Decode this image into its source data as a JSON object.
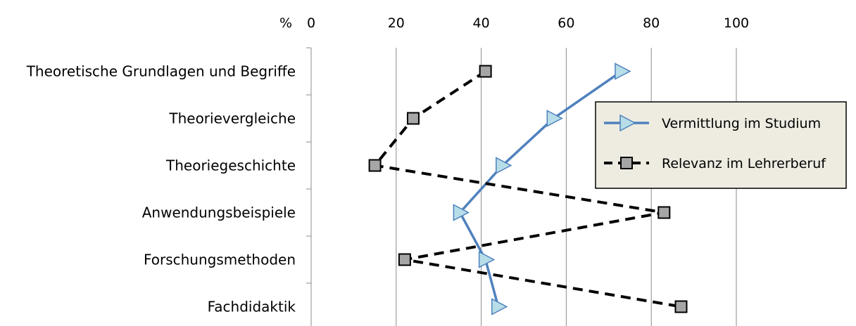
{
  "chart_data": {
    "type": "line",
    "orientation": "horizontal",
    "axis_unit_label": "%",
    "xlim": [
      0,
      100
    ],
    "x_ticks": [
      "0",
      "20",
      "40",
      "60",
      "80",
      "100"
    ],
    "categories": [
      "Theoretische Grundlagen und Begriffe",
      "Theorievergleiche",
      "Theoriegeschichte",
      "Anwendungsbeispiele",
      "Forschungsmethoden",
      "Fachdidaktik"
    ],
    "series": [
      {
        "name": "Vermittlung im Studium",
        "marker": "triangle-right",
        "line": "solid",
        "color": "#4f81bd",
        "marker_fill": "#b7dde8",
        "values": [
          73,
          57,
          45,
          35,
          41,
          44
        ]
      },
      {
        "name": "Relevanz im Lehrerberuf",
        "marker": "square",
        "line": "dashed",
        "color": "#000000",
        "marker_fill": "#a6a6a6",
        "values": [
          41,
          24,
          15,
          83,
          22,
          87
        ]
      }
    ],
    "grid": true,
    "legend_position": "right",
    "legend_bg": "#eeece1"
  }
}
